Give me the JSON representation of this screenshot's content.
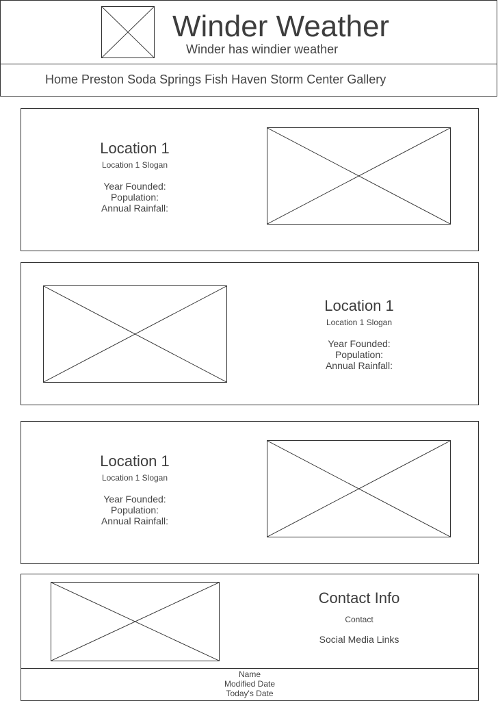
{
  "header": {
    "title": "Winder Weather",
    "tagline": "Winder has windier weather",
    "logo_icon": "image-placeholder-icon"
  },
  "nav": {
    "items": [
      "Home",
      "Preston",
      "Soda Springs",
      "Fish Haven",
      "Storm Center",
      "Gallery"
    ]
  },
  "locations": [
    {
      "title": "Location 1",
      "slogan": "Location 1 Slogan",
      "year_founded": "Year Founded:",
      "population": "Population:",
      "annual_rainfall": "Annual Rainfall:"
    },
    {
      "title": "Location 1",
      "slogan": "Location 1 Slogan",
      "year_founded": "Year Founded:",
      "population": "Population:",
      "annual_rainfall": "Annual Rainfall:"
    },
    {
      "title": "Location 1",
      "slogan": "Location 1 Slogan",
      "year_founded": "Year Founded:",
      "population": "Population:",
      "annual_rainfall": "Annual Rainfall:"
    }
  ],
  "contact": {
    "title": "Contact Info",
    "contact_label": "Contact",
    "social_label": "Social Media Links"
  },
  "footer": {
    "name": "Name",
    "modified": "Modified Date",
    "today": "Today's Date"
  }
}
